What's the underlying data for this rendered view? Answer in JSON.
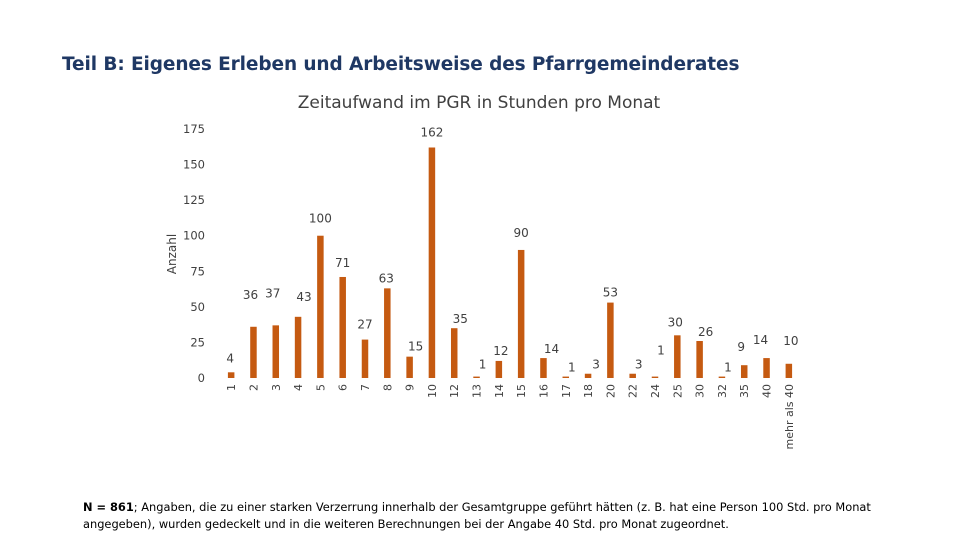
{
  "heading": "Teil B: Eigenes Erleben und Arbeitsweise des Pfarrgemeinderates",
  "chart_data": {
    "type": "bar",
    "title": "Zeitaufwand im PGR in Stunden pro Monat",
    "xlabel": "",
    "ylabel": "Anzahl",
    "ylim": [
      0,
      175
    ],
    "yticks": [
      0,
      25,
      50,
      75,
      100,
      125,
      150,
      175
    ],
    "grid": false,
    "bar_color": "#c55a11",
    "categories": [
      "1",
      "2",
      "3",
      "4",
      "5",
      "6",
      "7",
      "8",
      "9",
      "10",
      "12",
      "13",
      "14",
      "15",
      "16",
      "17",
      "18",
      "20",
      "22",
      "24",
      "25",
      "30",
      "32",
      "35",
      "40",
      "mehr als 40"
    ],
    "values": [
      4,
      36,
      37,
      43,
      100,
      71,
      27,
      63,
      15,
      162,
      35,
      1,
      12,
      90,
      14,
      1,
      3,
      53,
      3,
      1,
      30,
      26,
      1,
      9,
      14,
      10
    ]
  },
  "footnote": {
    "n_label": "N = 861",
    "text": "; Angaben, die zu einer starken Verzerrung innerhalb der Gesamtgruppe geführt hätten (z. B. hat eine Person 100 Std. pro Monat angegeben), wurden gedeckelt und in die weiteren Berechnungen bei der Angabe 40 Std. pro Monat zugeordnet."
  }
}
